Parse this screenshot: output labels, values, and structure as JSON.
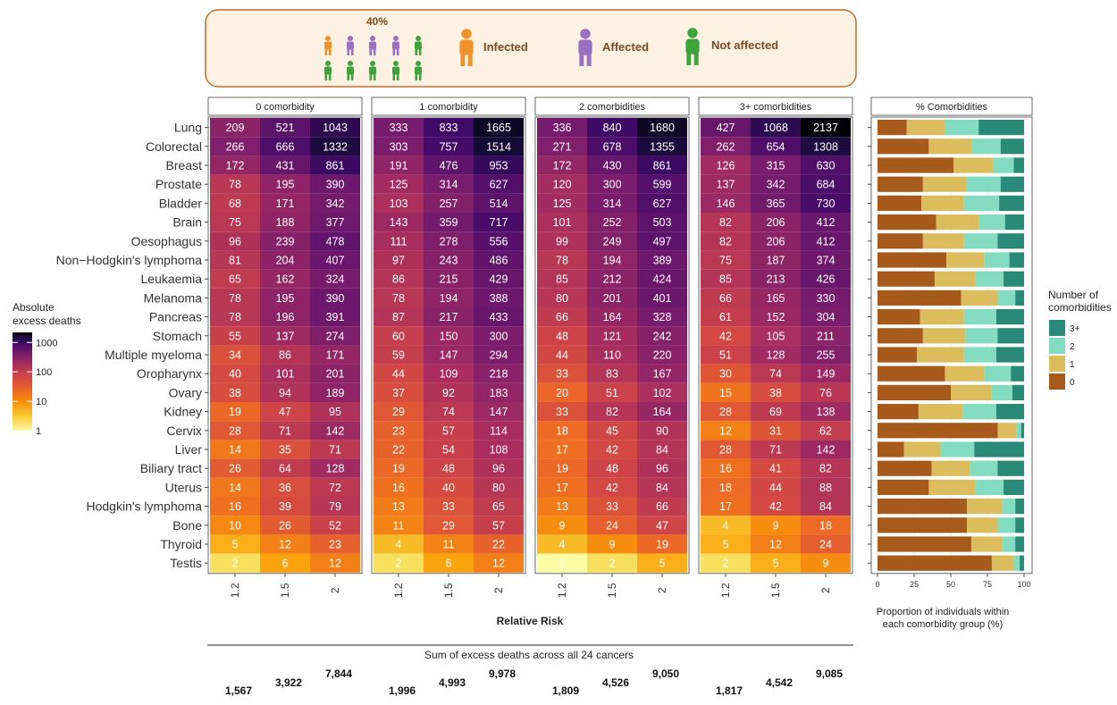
{
  "legend_box": {
    "percent_label": "40%",
    "infected_label": "Infected",
    "affected_label": "Affected",
    "not_affected_label": "Not affected",
    "colors": {
      "infected": "#f0922b",
      "affected": "#9b6fc2",
      "not_affected": "#3ea33a",
      "border": "#b8702e",
      "fill": "#fdf1e3"
    }
  },
  "chart_data": [
    {
      "type": "heatmap",
      "cancers": [
        "Lung",
        "Colorectal",
        "Breast",
        "Prostate",
        "Bladder",
        "Brain",
        "Oesophagus",
        "Non−Hodgkin's lymphoma",
        "Leukaemia",
        "Melanoma",
        "Pancreas",
        "Stomach",
        "Multiple myeloma",
        "Oropharynx",
        "Ovary",
        "Kidney",
        "Cervix",
        "Liver",
        "Biliary tract",
        "Uterus",
        "Hodgkin's lymphoma",
        "Bone",
        "Thyroid",
        "Testis"
      ],
      "relative_risk_ticks": [
        "1.2",
        "1.5",
        "2"
      ],
      "xlabel": "Relative Risk",
      "color_scale": "log",
      "legend_title": "Absolute\nexcess deaths",
      "legend_ticks": [
        "1000",
        "100",
        "10",
        "1"
      ],
      "panels": [
        {
          "title": "0 comorbidity",
          "values": [
            [
              209,
              521,
              1043
            ],
            [
              266,
              666,
              1332
            ],
            [
              172,
              431,
              861
            ],
            [
              78,
              195,
              390
            ],
            [
              68,
              171,
              342
            ],
            [
              75,
              188,
              377
            ],
            [
              96,
              239,
              478
            ],
            [
              81,
              204,
              407
            ],
            [
              65,
              162,
              324
            ],
            [
              78,
              195,
              390
            ],
            [
              78,
              196,
              391
            ],
            [
              55,
              137,
              274
            ],
            [
              34,
              86,
              171
            ],
            [
              40,
              101,
              201
            ],
            [
              38,
              94,
              189
            ],
            [
              19,
              47,
              95
            ],
            [
              28,
              71,
              142
            ],
            [
              14,
              35,
              71
            ],
            [
              26,
              64,
              128
            ],
            [
              14,
              36,
              72
            ],
            [
              16,
              39,
              79
            ],
            [
              10,
              26,
              52
            ],
            [
              5,
              12,
              23
            ],
            [
              2,
              6,
              12
            ]
          ]
        },
        {
          "title": "1 comorbidity",
          "values": [
            [
              333,
              833,
              1665
            ],
            [
              303,
              757,
              1514
            ],
            [
              191,
              476,
              953
            ],
            [
              125,
              314,
              627
            ],
            [
              103,
              257,
              514
            ],
            [
              143,
              359,
              717
            ],
            [
              111,
              278,
              556
            ],
            [
              97,
              243,
              486
            ],
            [
              86,
              215,
              429
            ],
            [
              78,
              194,
              388
            ],
            [
              87,
              217,
              433
            ],
            [
              60,
              150,
              300
            ],
            [
              59,
              147,
              294
            ],
            [
              44,
              109,
              218
            ],
            [
              37,
              92,
              183
            ],
            [
              29,
              74,
              147
            ],
            [
              23,
              57,
              114
            ],
            [
              22,
              54,
              108
            ],
            [
              19,
              48,
              96
            ],
            [
              16,
              40,
              80
            ],
            [
              13,
              33,
              65
            ],
            [
              11,
              29,
              57
            ],
            [
              4,
              11,
              22
            ],
            [
              2,
              6,
              12
            ]
          ]
        },
        {
          "title": "2 comorbidities",
          "values": [
            [
              336,
              840,
              1680
            ],
            [
              271,
              678,
              1355
            ],
            [
              172,
              430,
              861
            ],
            [
              120,
              300,
              599
            ],
            [
              125,
              314,
              627
            ],
            [
              101,
              252,
              503
            ],
            [
              99,
              249,
              497
            ],
            [
              78,
              194,
              389
            ],
            [
              85,
              212,
              424
            ],
            [
              80,
              201,
              401
            ],
            [
              66,
              164,
              328
            ],
            [
              48,
              121,
              242
            ],
            [
              44,
              110,
              220
            ],
            [
              33,
              83,
              167
            ],
            [
              20,
              51,
              102
            ],
            [
              33,
              82,
              164
            ],
            [
              18,
              45,
              90
            ],
            [
              17,
              42,
              84
            ],
            [
              19,
              48,
              96
            ],
            [
              17,
              42,
              84
            ],
            [
              13,
              33,
              66
            ],
            [
              9,
              24,
              47
            ],
            [
              4,
              9,
              19
            ],
            [
              1,
              2,
              5
            ]
          ]
        },
        {
          "title": "3+ comorbidities",
          "values": [
            [
              427,
              1068,
              2137
            ],
            [
              262,
              654,
              1308
            ],
            [
              126,
              315,
              630
            ],
            [
              137,
              342,
              684
            ],
            [
              146,
              365,
              730
            ],
            [
              82,
              206,
              412
            ],
            [
              82,
              206,
              412
            ],
            [
              75,
              187,
              374
            ],
            [
              85,
              213,
              426
            ],
            [
              66,
              165,
              330
            ],
            [
              61,
              152,
              304
            ],
            [
              42,
              105,
              211
            ],
            [
              51,
              128,
              255
            ],
            [
              30,
              74,
              149
            ],
            [
              15,
              38,
              76
            ],
            [
              28,
              69,
              138
            ],
            [
              12,
              31,
              62
            ],
            [
              28,
              71,
              142
            ],
            [
              16,
              41,
              82
            ],
            [
              18,
              44,
              88
            ],
            [
              17,
              42,
              84
            ],
            [
              4,
              9,
              18
            ],
            [
              5,
              12,
              24
            ],
            [
              2,
              5,
              9
            ]
          ]
        }
      ]
    },
    {
      "type": "bar",
      "stacked": true,
      "orientation": "horizontal",
      "title": "% Comorbidities",
      "xlabel": "Proportion of individuals within\neach comorbidity group (%)",
      "xlim": [
        0,
        100
      ],
      "xticks": [
        "0",
        "25",
        "50",
        "75",
        "100"
      ],
      "legend_title": "Number of\ncomorbidities",
      "series": [
        {
          "name": "0",
          "color": "#a65a1c",
          "values": [
            20,
            35,
            52,
            31,
            30,
            40,
            31,
            47,
            39,
            57,
            29,
            31,
            27,
            46,
            50,
            28,
            82,
            18,
            37,
            35,
            61,
            61,
            64,
            78
          ]
        },
        {
          "name": "1",
          "color": "#dcbd5e",
          "values": [
            26,
            29,
            27,
            30,
            29,
            29,
            28,
            26,
            28,
            25,
            30,
            29,
            32,
            27,
            28,
            30,
            13,
            25,
            26,
            32,
            24,
            21,
            21,
            15
          ]
        },
        {
          "name": "2",
          "color": "#84dcc0",
          "values": [
            23,
            20,
            14,
            23,
            24,
            18,
            23,
            17,
            19,
            12,
            22,
            22,
            22,
            18,
            14,
            23,
            3,
            23,
            19,
            19,
            9,
            12,
            9,
            4
          ]
        },
        {
          "name": "3+",
          "color": "#2a8a78",
          "values": [
            31,
            16,
            7,
            16,
            17,
            13,
            18,
            10,
            14,
            6,
            19,
            18,
            19,
            9,
            8,
            19,
            2,
            34,
            18,
            14,
            6,
            6,
            6,
            3
          ]
        }
      ]
    }
  ],
  "sum_section": {
    "title": "Sum of excess deaths across all 24 cancers",
    "groups": [
      [
        "1,567",
        "3,922",
        "7,844"
      ],
      [
        "1,996",
        "4,993",
        "9,978"
      ],
      [
        "1,809",
        "4,526",
        "9,050"
      ],
      [
        "1,817",
        "4,542",
        "9,085"
      ]
    ]
  }
}
